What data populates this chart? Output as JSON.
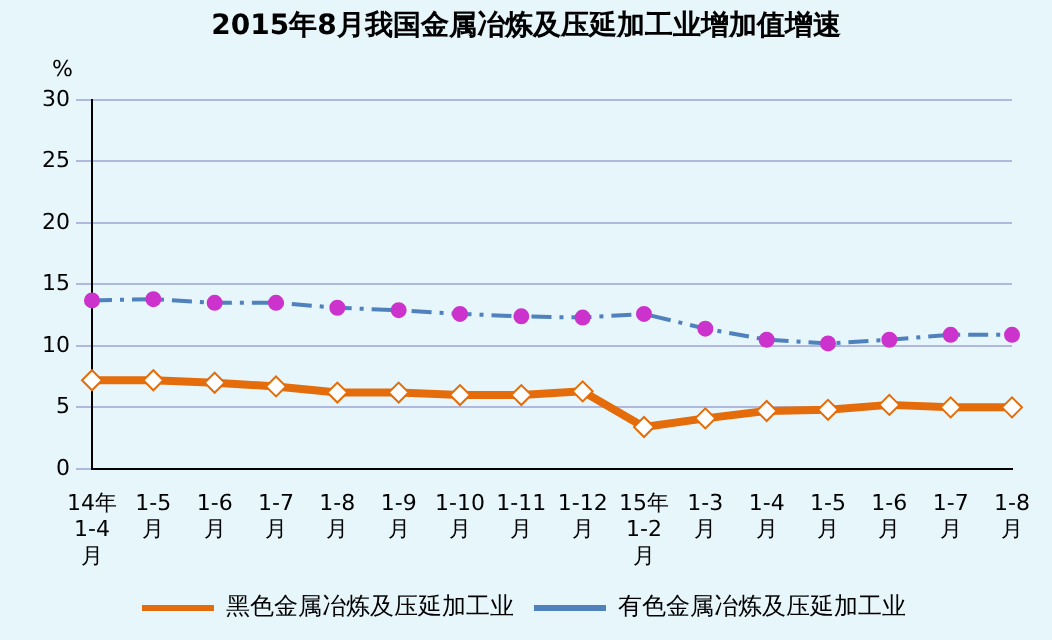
{
  "chart_data": {
    "type": "line",
    "title": "2015年8月我国金属冶炼及压延加工业增加值增速",
    "ylabel": "%",
    "categories": [
      "14年\n1-4\n月",
      "1-5\n月",
      "1-6\n月",
      "1-7\n月",
      "1-8\n月",
      "1-9\n月",
      "1-10\n月",
      "1-11\n月",
      "1-12\n月",
      "15年\n1-2\n月",
      "1-3\n月",
      "1-4\n月",
      "1-5\n月",
      "1-6\n月",
      "1-7\n月",
      "1-8\n月"
    ],
    "series": [
      {
        "name": "黑色金属冶炼及压延加工业",
        "color": "#e46c0a",
        "marker": "diamond",
        "line_style": "solid",
        "values": [
          7.2,
          7.2,
          7.0,
          6.7,
          6.2,
          6.2,
          6.0,
          6.0,
          6.3,
          3.4,
          4.1,
          4.7,
          4.8,
          5.2,
          5.0,
          5.0
        ]
      },
      {
        "name": "有色金属冶炼及压延加工业",
        "color": "#4f81bd",
        "marker": "circle",
        "line_style": "dashed",
        "values": [
          13.7,
          13.8,
          13.5,
          13.5,
          13.1,
          12.9,
          12.6,
          12.4,
          12.3,
          12.6,
          11.4,
          10.5,
          10.2,
          10.5,
          10.9,
          10.9
        ]
      }
    ],
    "ylim": [
      0,
      30
    ],
    "yticks": [
      0,
      5,
      10,
      15,
      20,
      25,
      30
    ],
    "grid": "y",
    "legend": "bottom"
  }
}
